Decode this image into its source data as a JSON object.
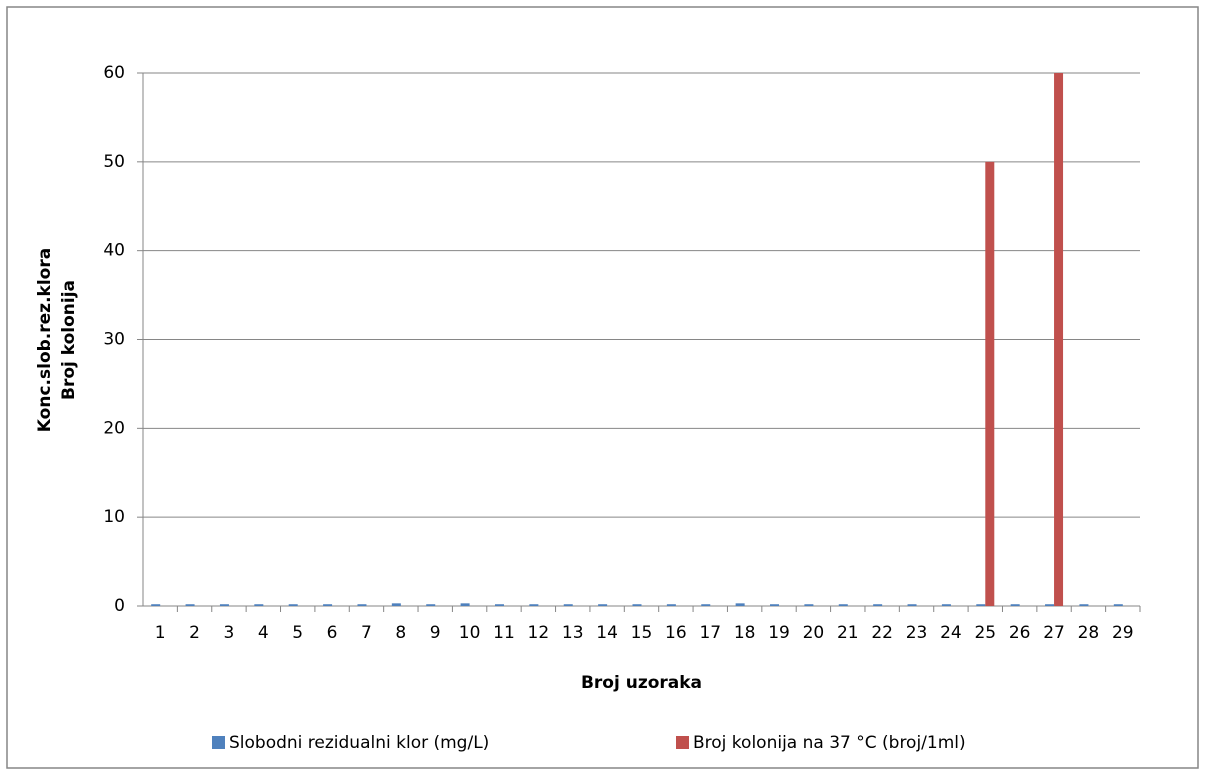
{
  "chart_data": {
    "type": "bar",
    "xlabel": "Broj uzoraka",
    "ylabel": [
      "Konc.slob.rez.klora",
      "Broj kolonija"
    ],
    "categories": [
      "1",
      "2",
      "3",
      "4",
      "5",
      "6",
      "7",
      "8",
      "9",
      "10",
      "11",
      "12",
      "13",
      "14",
      "15",
      "16",
      "17",
      "18",
      "19",
      "20",
      "21",
      "22",
      "23",
      "24",
      "25",
      "26",
      "27",
      "28",
      "29"
    ],
    "series": [
      {
        "name": "Slobodni rezidualni klor (mg/L)",
        "color": "#4f81bd",
        "values": [
          0.2,
          0.2,
          0.2,
          0.2,
          0.2,
          0.2,
          0.2,
          0.3,
          0.2,
          0.3,
          0.2,
          0.2,
          0.2,
          0.2,
          0.2,
          0.2,
          0.2,
          0.3,
          0.2,
          0.2,
          0.2,
          0.2,
          0.2,
          0.2,
          0.2,
          0.2,
          0.2,
          0.2,
          0.2
        ]
      },
      {
        "name": "Broj kolonija na 37 °C (broj/1ml)",
        "color": "#c0504d",
        "values": [
          0,
          0,
          0,
          0,
          0,
          0,
          0,
          0,
          0,
          0,
          0,
          0,
          0,
          0,
          0,
          0,
          0,
          0,
          0,
          0,
          0,
          0,
          0,
          0,
          50,
          0,
          60,
          0,
          0
        ]
      }
    ],
    "ylim": [
      0,
      60
    ],
    "yticks": [
      0,
      10,
      20,
      30,
      40,
      50,
      60
    ],
    "grid": true,
    "legend": "bottom"
  }
}
